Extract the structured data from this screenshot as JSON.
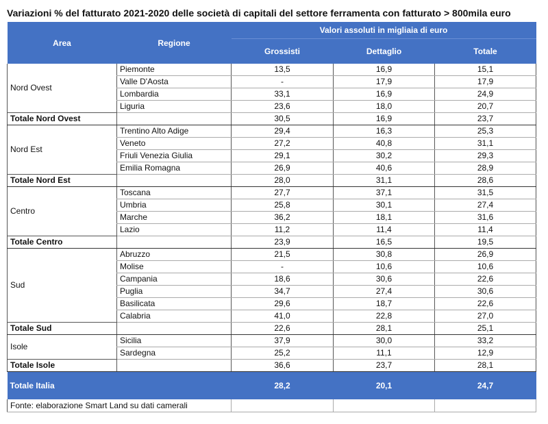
{
  "title": "Variazioni % del fatturato 2021-2020 delle società di capitali del settore ferramenta con fatturato > 800mila euro",
  "header": {
    "area": "Area",
    "regione": "Regione",
    "group": "Valori assoluti in migliaia di euro",
    "grossisti": "Grossisti",
    "dettaglio": "Dettaglio",
    "totale": "Totale"
  },
  "groups": [
    {
      "area": "Nord Ovest",
      "rows": [
        {
          "regione": "Piemonte",
          "grossisti": "13,5",
          "dettaglio": "16,9",
          "totale": "15,1"
        },
        {
          "regione": "Valle D'Aosta",
          "grossisti": "-",
          "dettaglio": "17,9",
          "totale": "17,9"
        },
        {
          "regione": "Lombardia",
          "grossisti": "33,1",
          "dettaglio": "16,9",
          "totale": "24,9"
        },
        {
          "regione": "Liguria",
          "grossisti": "23,6",
          "dettaglio": "18,0",
          "totale": "20,7"
        }
      ],
      "total": {
        "label": "Totale Nord Ovest",
        "grossisti": "30,5",
        "dettaglio": "16,9",
        "totale": "23,7"
      }
    },
    {
      "area": "Nord Est",
      "rows": [
        {
          "regione": "Trentino Alto Adige",
          "grossisti": "29,4",
          "dettaglio": "16,3",
          "totale": "25,3"
        },
        {
          "regione": "Veneto",
          "grossisti": "27,2",
          "dettaglio": "40,8",
          "totale": "31,1"
        },
        {
          "regione": "Friuli Venezia Giulia",
          "grossisti": "29,1",
          "dettaglio": "30,2",
          "totale": "29,3"
        },
        {
          "regione": "Emilia Romagna",
          "grossisti": "26,9",
          "dettaglio": "40,6",
          "totale": "28,9"
        }
      ],
      "total": {
        "label": "Totale Nord Est",
        "grossisti": "28,0",
        "dettaglio": "31,1",
        "totale": "28,6"
      }
    },
    {
      "area": "Centro",
      "rows": [
        {
          "regione": "Toscana",
          "grossisti": "27,7",
          "dettaglio": "37,1",
          "totale": "31,5"
        },
        {
          "regione": "Umbria",
          "grossisti": "25,8",
          "dettaglio": "30,1",
          "totale": "27,4"
        },
        {
          "regione": "Marche",
          "grossisti": "36,2",
          "dettaglio": "18,1",
          "totale": "31,6"
        },
        {
          "regione": "Lazio",
          "grossisti": "11,2",
          "dettaglio": "11,4",
          "totale": "11,4"
        }
      ],
      "total": {
        "label": "Totale Centro",
        "grossisti": "23,9",
        "dettaglio": "16,5",
        "totale": "19,5"
      }
    },
    {
      "area": "Sud",
      "rows": [
        {
          "regione": "Abruzzo",
          "grossisti": "21,5",
          "dettaglio": "30,8",
          "totale": "26,9"
        },
        {
          "regione": "Molise",
          "grossisti": "-",
          "dettaglio": "10,6",
          "totale": "10,6"
        },
        {
          "regione": "Campania",
          "grossisti": "18,6",
          "dettaglio": "30,6",
          "totale": "22,6"
        },
        {
          "regione": "Puglia",
          "grossisti": "34,7",
          "dettaglio": "27,4",
          "totale": "30,6"
        },
        {
          "regione": "Basilicata",
          "grossisti": "29,6",
          "dettaglio": "18,7",
          "totale": "22,6"
        },
        {
          "regione": "Calabria",
          "grossisti": "41,0",
          "dettaglio": "22,8",
          "totale": "27,0"
        }
      ],
      "total": {
        "label": "Totale Sud",
        "grossisti": "22,6",
        "dettaglio": "28,1",
        "totale": "25,1"
      }
    },
    {
      "area": "Isole",
      "rows": [
        {
          "regione": "Sicilia",
          "grossisti": "37,9",
          "dettaglio": "30,0",
          "totale": "33,2"
        },
        {
          "regione": "Sardegna",
          "grossisti": "25,2",
          "dettaglio": "11,1",
          "totale": "12,9"
        }
      ],
      "total": {
        "label": "Totale Isole",
        "grossisti": "36,6",
        "dettaglio": "23,7",
        "totale": "28,1"
      }
    }
  ],
  "italia": {
    "label": "Totale Italia",
    "grossisti": "28,2",
    "dettaglio": "20,1",
    "totale": "24,7"
  },
  "fonte": "Fonte: elaborazione Smart Land su dati camerali",
  "colors": {
    "header_bg": "#4472c4",
    "header_text": "#ffffff"
  }
}
